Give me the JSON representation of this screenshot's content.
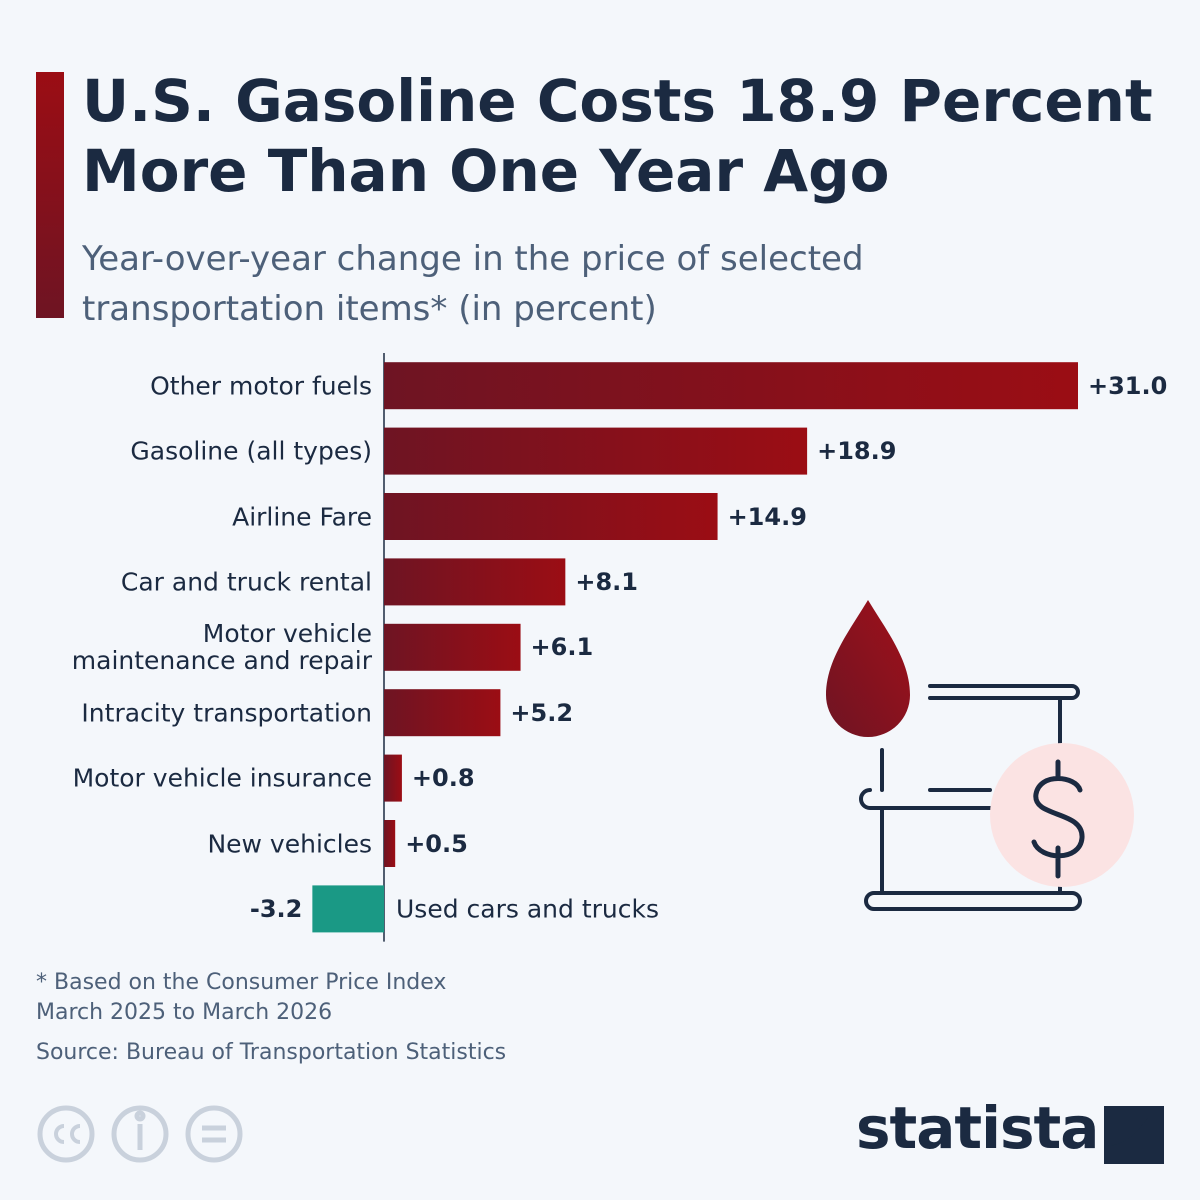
{
  "chart_data": {
    "type": "bar",
    "orientation": "horizontal",
    "title": "U.S. Gasoline Costs 18.9 Percent More Than One Year Ago",
    "subtitle": "Year-over-year change in the price of selected transportation items* (in percent)",
    "categories": [
      "Other motor fuels",
      "Gasoline (all types)",
      "Airline Fare",
      "Car and truck rental",
      "Motor vehicle maintenance and repair",
      "Intracity transportation",
      "Motor vehicle insurance",
      "New vehicles",
      "Used cars and trucks"
    ],
    "values": [
      31.0,
      18.9,
      14.9,
      8.1,
      6.1,
      5.2,
      0.8,
      0.5,
      -3.2
    ],
    "value_labels": [
      "+31.0",
      "+18.9",
      "+14.9",
      "+8.1",
      "+6.1",
      "+5.2",
      "+0.8",
      "+0.5",
      "-3.2"
    ],
    "color": "#9b0d14",
    "negative_color": "#1a9985",
    "notes": [
      "* Based on the Consumer Price Index",
      "March 2025 to March 2026"
    ],
    "source": "Source: Bureau of Transportation Statistics",
    "logo": "statista"
  }
}
